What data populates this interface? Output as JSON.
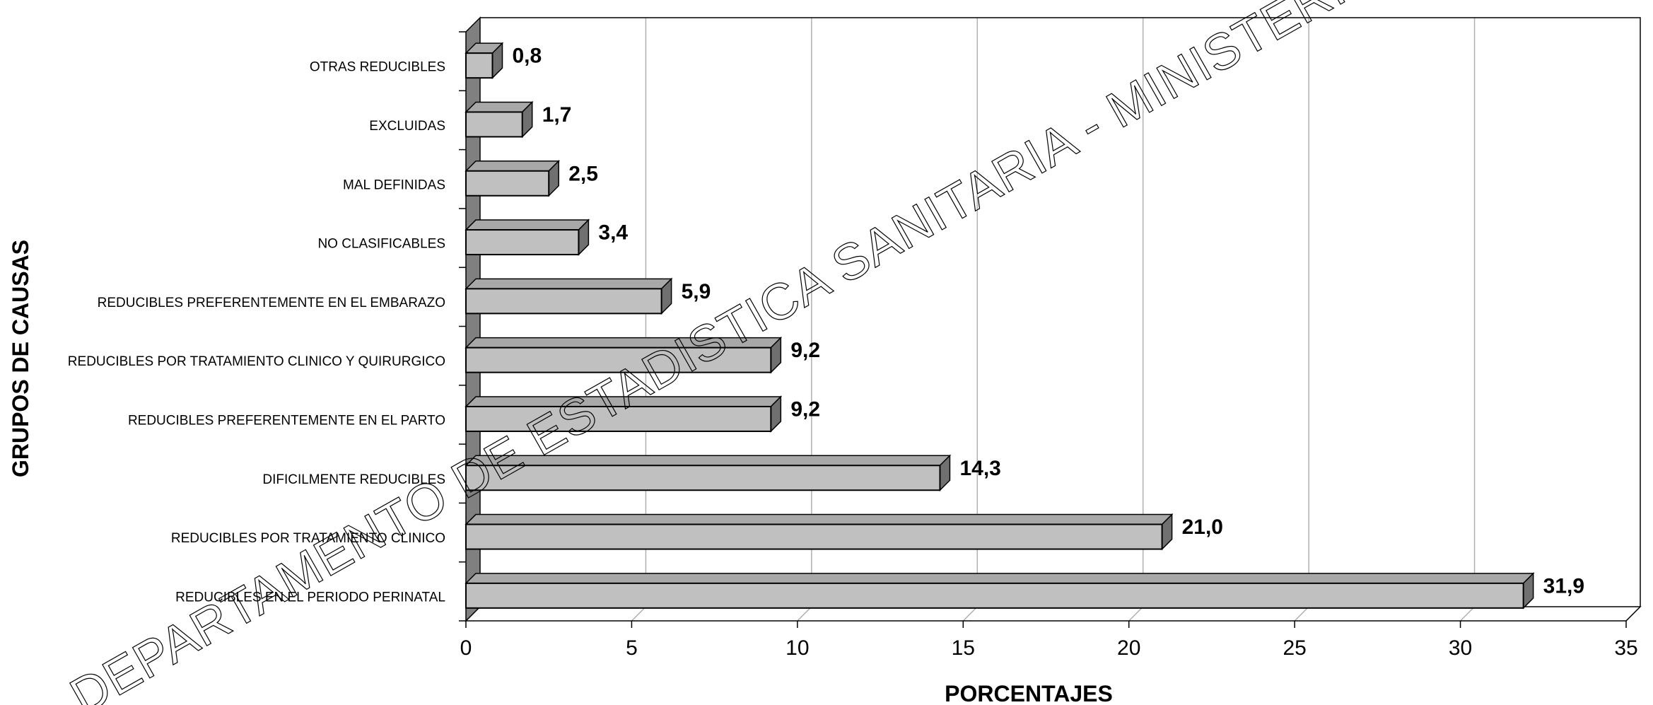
{
  "chart_data": {
    "type": "bar",
    "orientation": "horizontal",
    "style": "3d",
    "xlabel": "PORCENTAJES",
    "ylabel": "GRUPOS DE CAUSAS",
    "xlim": [
      0,
      35
    ],
    "xticks": [
      0,
      5,
      10,
      15,
      20,
      25,
      30,
      35
    ],
    "grid": "vertical",
    "categories": [
      "OTRAS REDUCIBLES",
      "EXCLUIDAS",
      "MAL DEFINIDAS",
      "NO CLASIFICABLES",
      "REDUCIBLES PREFERENTEMENTE EN EL EMBARAZO",
      "REDUCIBLES POR TRATAMIENTO CLINICO Y QUIRURGICO",
      "REDUCIBLES PREFERENTEMENTE EN EL PARTO",
      "DIFICILMENTE REDUCIBLES",
      "REDUCIBLES POR TRATAMIENTO CLINICO",
      "REDUCIBLES EN EL PERIODO PERINATAL"
    ],
    "values": [
      0.8,
      1.7,
      2.5,
      3.4,
      5.9,
      9.2,
      9.2,
      14.3,
      21.0,
      31.9
    ],
    "value_labels": [
      "0,8",
      "1,7",
      "2,5",
      "3,4",
      "5,9",
      "9,2",
      "9,2",
      "14,3",
      "21,0",
      "31,9"
    ],
    "colors": {
      "bar_front": "#c0c0c0",
      "bar_top": "#a8a8a8",
      "bar_side": "#707070",
      "wall": "#808080",
      "grid": "#b0b0b0"
    }
  },
  "watermark": "DEPARTAMENTO DE ESTADISTICA SANITARIA - MINISTERIO DE SALUD PUBLICA - PR"
}
